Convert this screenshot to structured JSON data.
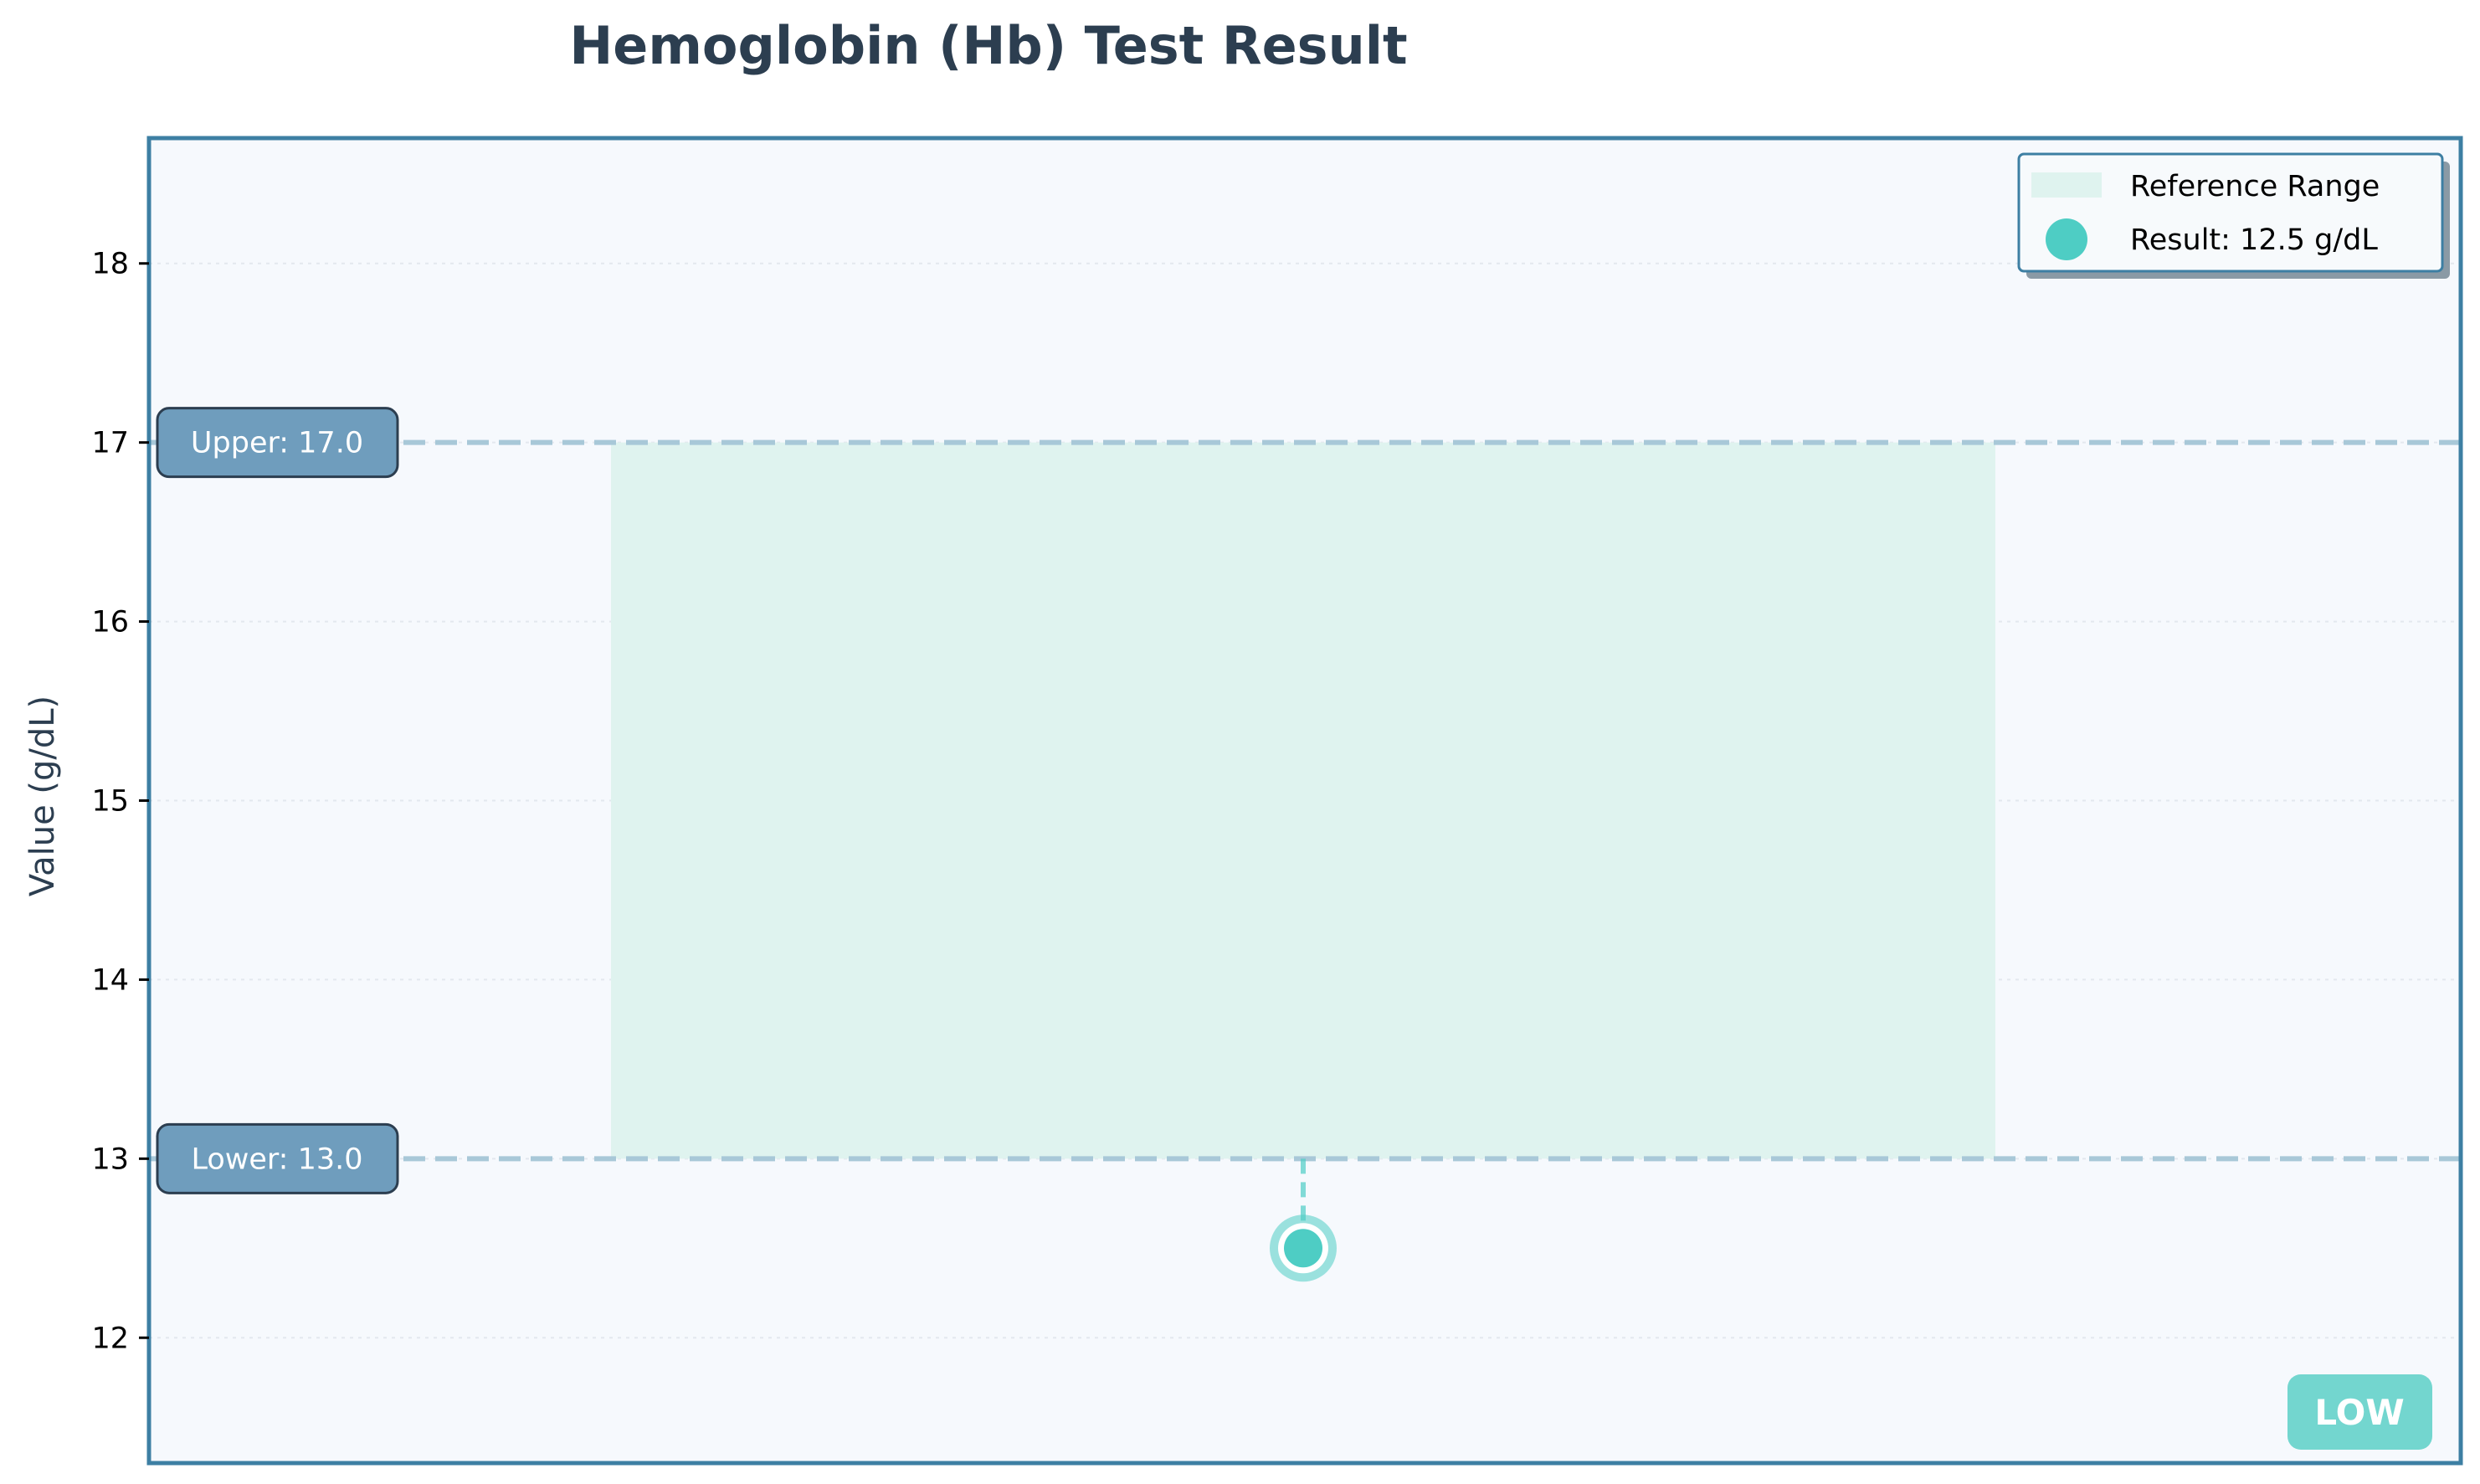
{
  "chart_data": {
    "type": "scatter",
    "title": "Hemoglobin (Hb) Test Result",
    "xlabel": "",
    "ylabel": "Value (g/dL)",
    "ylim": [
      11.3,
      18.7
    ],
    "yticks": [
      12,
      13,
      14,
      15,
      16,
      17,
      18
    ],
    "ytick_labels": [
      "12",
      "13",
      "14",
      "15",
      "16",
      "17",
      "18"
    ],
    "grid": true,
    "reference_range": {
      "lower": 13.0,
      "upper": 17.0,
      "label": "Reference Range"
    },
    "result": {
      "value": 12.5,
      "unit": "g/dL",
      "legend_label": "Result: 12.5 g/dL"
    },
    "bound_labels": {
      "upper": "Upper: 17.0",
      "lower": "Lower: 13.0"
    },
    "status": "LOW",
    "legend_position": "top-right",
    "colors": {
      "title": "#2c3e50",
      "axes_edge": "#3d7fa3",
      "plot_background": "#f6f9fd",
      "range_fill": "#dff3ef",
      "bound_line": "#a8c8d8",
      "bound_label_bg": "#6f9dbd",
      "result_marker": "#4ecdc4",
      "status_badge": "#73d6cf"
    }
  }
}
